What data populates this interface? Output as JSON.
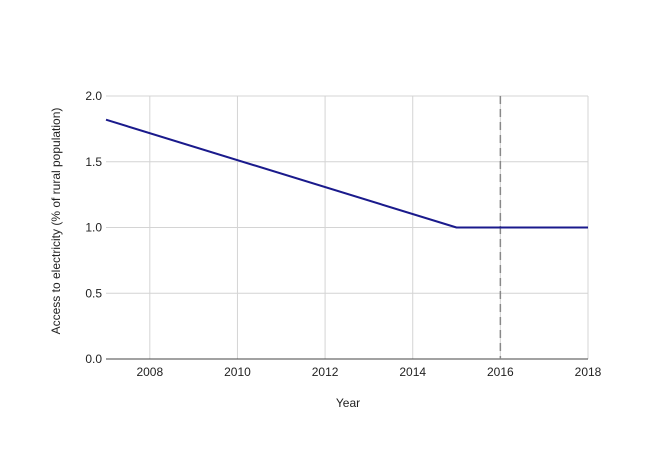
{
  "chart_data": {
    "type": "line",
    "xlabel": "Year",
    "ylabel": "Access to electricity (% of rural population)",
    "xlim": [
      2007,
      2018
    ],
    "ylim": [
      0,
      2
    ],
    "x_ticks": [
      2008,
      2010,
      2012,
      2014,
      2016,
      2018
    ],
    "x_tick_labels": [
      "2008",
      "2010",
      "2012",
      "2014",
      "2016",
      "2018"
    ],
    "y_ticks": [
      0,
      0.5,
      1,
      1.5,
      2
    ],
    "y_tick_labels": [
      "0.0",
      "0.5",
      "1.0",
      "1.5",
      "2.0"
    ],
    "grid": true,
    "reference_line_x": 2016,
    "series_color": "#1a1a8c",
    "series": [
      {
        "x": [
          2007,
          2015,
          2018
        ],
        "values": [
          1.82,
          1.0,
          1.0
        ]
      }
    ]
  }
}
